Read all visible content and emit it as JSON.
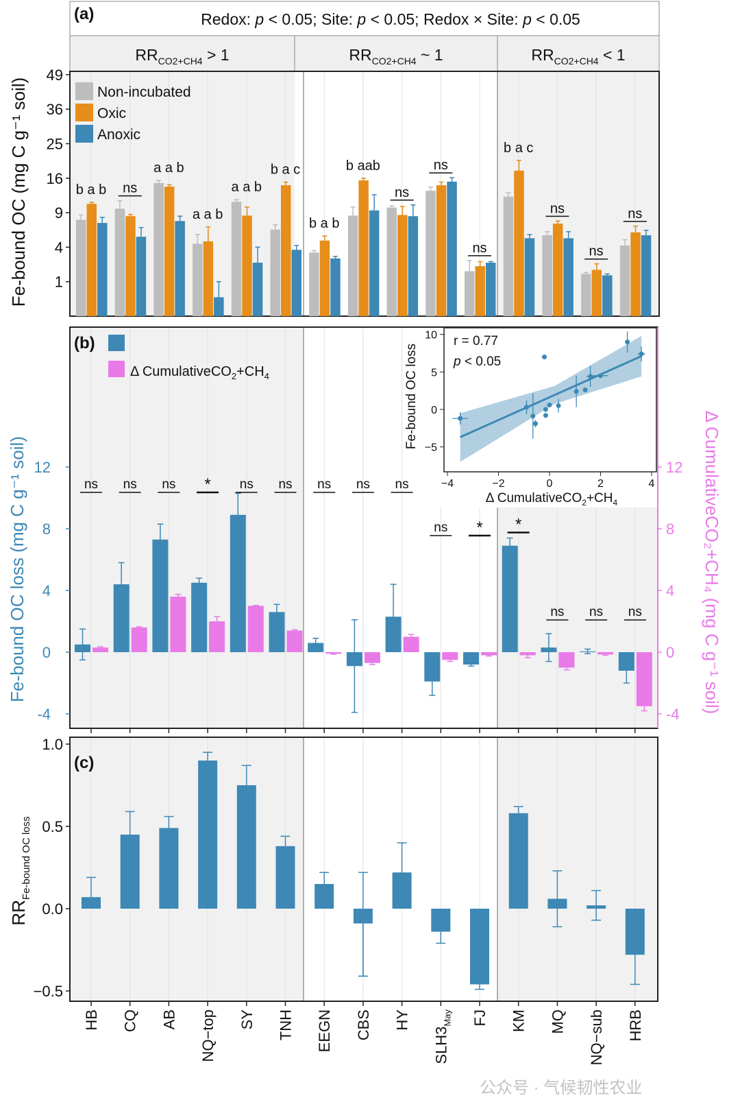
{
  "colors": {
    "non_incubated": "#bdbdbd",
    "oxic": "#e68e19",
    "anoxic": "#3d88b5",
    "delta_co2": "#e87ae8",
    "panel_shade": "#f1f1f1"
  },
  "sites": [
    "HB",
    "CQ",
    "AB",
    "NQ−top",
    "SY",
    "TNH",
    "EEGN",
    "CBS",
    "HY",
    "SLH3",
    "FJ",
    "KM",
    "MQ",
    "NQ−sub",
    "HRB"
  ],
  "site_sub": {
    "SLH3": "May"
  },
  "chart_data": [
    {
      "panel": "(a)",
      "type": "bar",
      "title": "Redox: p < 0.05; Site: p < 0.05; Redox × Site: p < 0.05",
      "title_parts": [
        "Redox: ",
        "p",
        " < 0.05; Site: ",
        "p",
        " < 0.05; Redox × Site: ",
        "p",
        " < 0.05"
      ],
      "facets": [
        {
          "main": "RR",
          "sub": "CO2+CH4",
          "rest": " > 1",
          "sites": 6
        },
        {
          "main": "RR",
          "sub": "CO2+CH4",
          "rest": " ~ 1",
          "sites": 5
        },
        {
          "main": "RR",
          "sub": "CO2+CH4",
          "rest": " < 1",
          "sites": 4
        }
      ],
      "ylabel": "Fe-bound OC (mg C g⁻¹ soil)",
      "yscale": "sqrt",
      "yticks": [
        1,
        4,
        9,
        16,
        25,
        36,
        49
      ],
      "legend": [
        "Non-incubated",
        "Oxic",
        "Anoxic"
      ],
      "legend_position": "top-left",
      "series": [
        {
          "name": "Non-incubated",
          "values": [
            7.8,
            9.7,
            14.9,
            4.4,
            11.0,
            6.3,
            3.4,
            8.5,
            9.9,
            13.2,
            1.7,
            12.0,
            5.5,
            1.5,
            4.2
          ],
          "err": [
            0.8,
            1.5,
            0.6,
            1.2,
            0.4,
            0.7,
            0.2,
            1.5,
            0.3,
            0.8,
            0.9,
            0.8,
            0.5,
            0.1,
            0.7
          ]
        },
        {
          "name": "Oxic",
          "values": [
            10.6,
            8.4,
            14.1,
            4.7,
            8.5,
            14.4,
            4.8,
            15.5,
            8.6,
            14.4,
            2.1,
            17.8,
            7.2,
            1.8,
            5.9
          ],
          "err": [
            0.3,
            0.3,
            0.4,
            2.0,
            1.5,
            0.7,
            0.6,
            0.5,
            1.5,
            0.7,
            0.4,
            2.6,
            0.4,
            0.5,
            0.9
          ]
        },
        {
          "name": "Anoxic",
          "values": [
            7.3,
            5.3,
            7.6,
            0.3,
            2.4,
            3.7,
            2.8,
            9.4,
            8.4,
            15.2,
            2.4,
            5.1,
            5.1,
            1.4,
            5.5
          ],
          "err": [
            0.9,
            1.3,
            0.8,
            0.7,
            1.6,
            0.5,
            0.2,
            3.0,
            2.0,
            0.9,
            0.1,
            0.5,
            0.9,
            0.1,
            0.7
          ]
        }
      ],
      "letters": [
        "b a b",
        "ns",
        "a a b",
        "a a b",
        "a a b",
        "b a c",
        "b a b",
        "b aab",
        "ns",
        "ns",
        "ns",
        "b a c",
        "ns",
        "ns",
        "ns"
      ]
    },
    {
      "panel": "(b)",
      "type": "bar",
      "ylabel_left": "Fe-bound OC loss (mg C g⁻¹ soil)",
      "ylabel_right": "Δ CumulativeCO₂+CH₄ (mg C g⁻¹ soil)",
      "yticks": [
        -4,
        0,
        4,
        8,
        12
      ],
      "ylim": [
        -4.5,
        12
      ],
      "legend": [
        {
          "main": "Fe-bound OC loss"
        },
        {
          "main": "Δ CumulativeCO",
          "sub1": "2",
          "mid": "+CH",
          "sub2": "4"
        }
      ],
      "legend_position": "top-left",
      "series": [
        {
          "name": "Fe-bound OC loss",
          "values": [
            0.5,
            4.4,
            7.3,
            4.5,
            8.9,
            2.6,
            0.6,
            -0.9,
            2.3,
            -1.9,
            -0.8,
            6.9,
            0.3,
            0.05,
            -1.2
          ],
          "err": [
            1.0,
            1.4,
            1.0,
            0.3,
            1.4,
            0.5,
            0.3,
            3.0,
            2.1,
            0.9,
            0.1,
            0.5,
            0.9,
            0.15,
            0.8
          ]
        },
        {
          "name": "Δ CumulativeCO2+CH4",
          "values": [
            0.3,
            1.6,
            3.6,
            2.0,
            3.0,
            1.4,
            -0.1,
            -0.7,
            1.0,
            -0.5,
            -0.2,
            -0.2,
            -1.0,
            -0.15,
            -3.5
          ],
          "err": [
            0.05,
            0.05,
            0.15,
            0.3,
            0.03,
            0.05,
            0.03,
            0.1,
            0.15,
            0.1,
            0.05,
            0.15,
            0.15,
            0.05,
            0.3
          ]
        }
      ],
      "significance": [
        "ns",
        "ns",
        "ns",
        "*",
        "ns",
        "ns",
        "ns",
        "ns",
        "ns",
        "ns",
        "*",
        "*",
        "ns",
        "ns",
        "ns"
      ]
    },
    {
      "panel": "(b) inset",
      "type": "scatter",
      "annotation_r": "r = 0.77",
      "annotation_p": [
        "p",
        " < 0.05"
      ],
      "xlabel": {
        "main": "Δ CumulativeCO",
        "sub1": "2",
        "mid": "+CH",
        "sub2": "4"
      },
      "ylabel": "Fe-bound OC loss",
      "xlim": [
        -4,
        4
      ],
      "ylim": [
        -7.5,
        10.5
      ],
      "xticks": [
        -4,
        -2,
        0,
        2,
        4
      ],
      "yticks": [
        -5,
        0,
        5,
        10
      ],
      "x": [
        -3.5,
        -0.9,
        -0.65,
        -0.55,
        -0.15,
        -0.15,
        0.0,
        0.35,
        1.05,
        1.4,
        1.6,
        2.0,
        3.05,
        3.6,
        -0.2
      ],
      "y": [
        -1.2,
        0.3,
        -0.9,
        -1.9,
        0.0,
        -0.8,
        0.6,
        0.5,
        2.4,
        2.6,
        4.4,
        4.5,
        9.0,
        7.4,
        7.0
      ],
      "xerr": [
        0.3,
        0.1,
        0.05,
        0.05,
        0.03,
        0.03,
        0.05,
        0.05,
        0.05,
        0.05,
        0.15,
        0.3,
        0.03,
        0.15,
        0.1
      ],
      "yerr": [
        0.8,
        0.9,
        3.0,
        0.5,
        0.1,
        0.1,
        0.1,
        0.9,
        2.1,
        0.3,
        1.4,
        0.1,
        1.4,
        1.0,
        0.3
      ],
      "fit": {
        "x": [
          -3.5,
          3.6
        ],
        "y": [
          -3.7,
          7.1
        ],
        "ci_lower": [
          -7.0,
          4.4
        ],
        "ci_upper": [
          -0.5,
          9.8
        ],
        "ci_mid_x": 0.2,
        "ci_mid_halfwidth": 1.2
      }
    },
    {
      "panel": "(c)",
      "type": "bar",
      "ylabel": {
        "main": "RR",
        "sub": "Fe-bound OC loss"
      },
      "yticks": [
        -0.5,
        0.0,
        0.5,
        1.0
      ],
      "ylim": [
        -0.55,
        1.0
      ],
      "values": [
        0.07,
        0.45,
        0.49,
        0.9,
        0.75,
        0.38,
        0.15,
        -0.09,
        0.22,
        -0.14,
        -0.46,
        0.58,
        0.06,
        0.02,
        -0.28
      ],
      "err": [
        0.12,
        0.14,
        0.07,
        0.05,
        0.12,
        0.06,
        0.07,
        0.32,
        0.18,
        0.07,
        0.03,
        0.04,
        0.17,
        0.09,
        0.18
      ]
    }
  ],
  "watermark": "公众号 · 气候韧性农业"
}
